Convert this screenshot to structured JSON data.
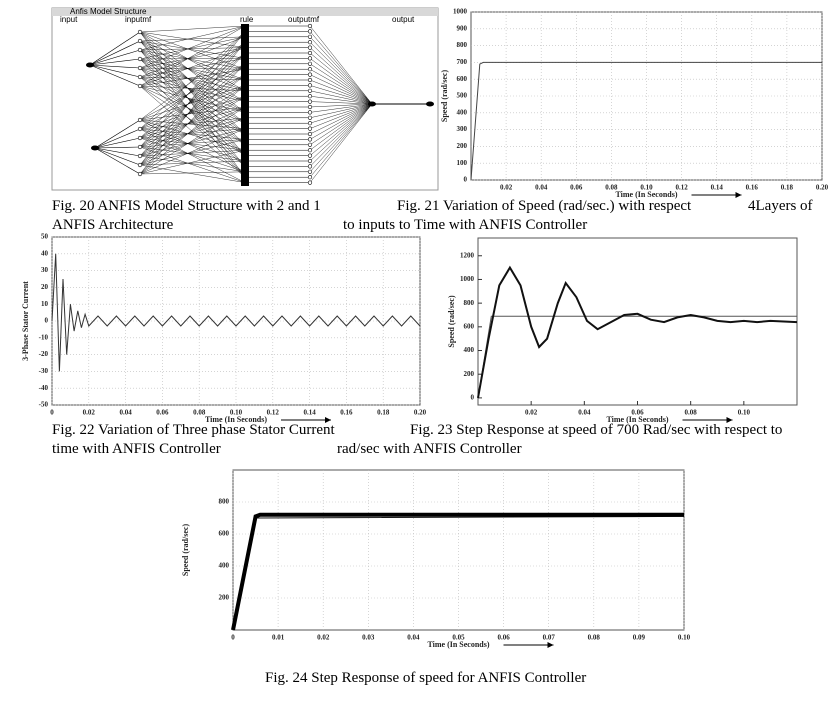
{
  "diagram": {
    "window_title": "Anfis Model Structure",
    "layers": [
      "input",
      "inputmf",
      "rule",
      "outputmf",
      "output"
    ]
  },
  "captions": [
    [
      "Fig. 20 ANFIS Model Structure with 2 and 1",
      "Fig. 21 Variation of Speed (rad/sec.) with respect",
      "4Layers of"
    ],
    [
      "ANFIS Architecture",
      "to inputs to Time with ANFIS Controller"
    ],
    [
      "Fig. 22 Variation of Three phase Stator Current",
      "Fig. 23 Step Response at speed of 700 Rad/sec with respect to"
    ],
    [
      "time with ANFIS Controller",
      "rad/sec with ANFIS Controller"
    ],
    [
      "Fig. 24 Step Response of speed for ANFIS Controller"
    ]
  ],
  "chart_data": [
    {
      "type": "line",
      "y_label": "Speed (rad/sec)",
      "x_label": "Time (In Seconds)",
      "grid": true,
      "xlim": [
        0,
        0.2
      ],
      "ylim": [
        0,
        1000
      ],
      "xticks": [
        0.02,
        0.04,
        0.06,
        0.08,
        {
          "value": 0.1,
          "label": "0.10"
        },
        0.12,
        0.14,
        0.16,
        0.18,
        {
          "value": 0.2,
          "label": "0.20"
        }
      ],
      "yticks": [
        0,
        100,
        200,
        300,
        400,
        500,
        600,
        700,
        800,
        900,
        1000
      ],
      "series": [
        {
          "color": "#444444",
          "x": [
            0,
            0.005,
            0.007,
            0.2
          ],
          "values": [
            0,
            690,
            700,
            700
          ]
        }
      ]
    },
    {
      "type": "line",
      "y_label": "3-Phase Stator Current",
      "x_label": "Time (In Seconds)",
      "grid": true,
      "xlim": [
        0,
        0.2
      ],
      "ylim": [
        -50,
        50
      ],
      "xticks": [
        0,
        0.02,
        0.04,
        0.06,
        0.08,
        {
          "value": 0.1,
          "label": "0.10"
        },
        0.12,
        0.14,
        0.16,
        0.18,
        {
          "value": 0.2,
          "label": "0.20"
        }
      ],
      "yticks": [
        -50,
        -40,
        -30,
        -20,
        -10,
        0,
        10,
        20,
        30,
        40,
        50
      ],
      "series": [
        {
          "color": "#333333",
          "x": [
            0,
            0.002,
            0.004,
            0.006,
            0.008,
            0.01,
            0.012,
            0.014,
            0.016,
            0.018,
            0.02,
            0.025,
            0.03,
            0.035,
            0.04,
            0.045,
            0.05,
            0.055,
            0.06,
            0.065,
            0.07,
            0.075,
            0.08,
            0.085,
            0.09,
            0.095,
            0.1,
            0.105,
            0.11,
            0.115,
            0.12,
            0.125,
            0.13,
            0.135,
            0.14,
            0.145,
            0.15,
            0.155,
            0.16,
            0.165,
            0.17,
            0.175,
            0.18,
            0.185,
            0.19,
            0.195,
            0.2
          ],
          "values": [
            0,
            40,
            -30,
            25,
            -20,
            10,
            -6,
            6,
            -4,
            4,
            -3,
            3,
            -3,
            3,
            -3,
            3,
            -3,
            3,
            -3,
            3,
            -3,
            3,
            -3,
            3,
            -3,
            3,
            -3,
            3,
            -3,
            3,
            -3,
            3,
            -3,
            3,
            -3,
            3,
            -3,
            3,
            -3,
            3,
            -3,
            3,
            -3,
            3,
            -3,
            3,
            -3
          ]
        }
      ]
    },
    {
      "type": "line",
      "y_label": "Speed (rad/sec)",
      "x_label": "Time (In Seconds)",
      "grid": false,
      "xlim": [
        0,
        0.12
      ],
      "ylim": [
        -60,
        1350
      ],
      "xticks": [
        0.02,
        0.04,
        0.06,
        0.08,
        {
          "value": 0.1,
          "label": "0.10"
        }
      ],
      "yticks": [
        0,
        200,
        400,
        600,
        800,
        1000,
        1200
      ],
      "series": [
        {
          "color": "#555555",
          "x": [
            0,
            0.005,
            0.12
          ],
          "values": [
            0,
            690,
            690
          ]
        },
        {
          "color": "#111111",
          "x": [
            0,
            0.004,
            0.008,
            0.012,
            0.016,
            0.02,
            0.023,
            0.026,
            0.03,
            0.033,
            0.037,
            0.041,
            0.045,
            0.05,
            0.055,
            0.06,
            0.065,
            0.07,
            0.075,
            0.08,
            0.085,
            0.09,
            0.095,
            0.1,
            0.105,
            0.11,
            0.12
          ],
          "values": [
            0,
            500,
            950,
            1100,
            950,
            600,
            430,
            500,
            800,
            970,
            850,
            650,
            580,
            640,
            700,
            710,
            660,
            640,
            680,
            700,
            680,
            650,
            640,
            650,
            640,
            650,
            640
          ]
        }
      ]
    },
    {
      "type": "line",
      "y_label": "Speed (rad/sec)",
      "x_label": "Time (In Seconds)",
      "grid": true,
      "xlim": [
        0,
        0.1
      ],
      "ylim": [
        0,
        1000
      ],
      "xticks": [
        0,
        0.01,
        0.02,
        0.03,
        0.04,
        0.05,
        0.06,
        0.07,
        0.08,
        0.09,
        {
          "value": 0.1,
          "label": "0.10"
        }
      ],
      "yticks": [
        200,
        400,
        600,
        800
      ],
      "series": [
        {
          "color": "#111111",
          "x": [
            0,
            0.005,
            0.1
          ],
          "values": [
            0,
            700,
            710
          ]
        },
        {
          "color": "#000000",
          "x": [
            0,
            0.005,
            0.006,
            0.1
          ],
          "values": [
            0,
            710,
            720,
            720
          ]
        }
      ]
    }
  ]
}
